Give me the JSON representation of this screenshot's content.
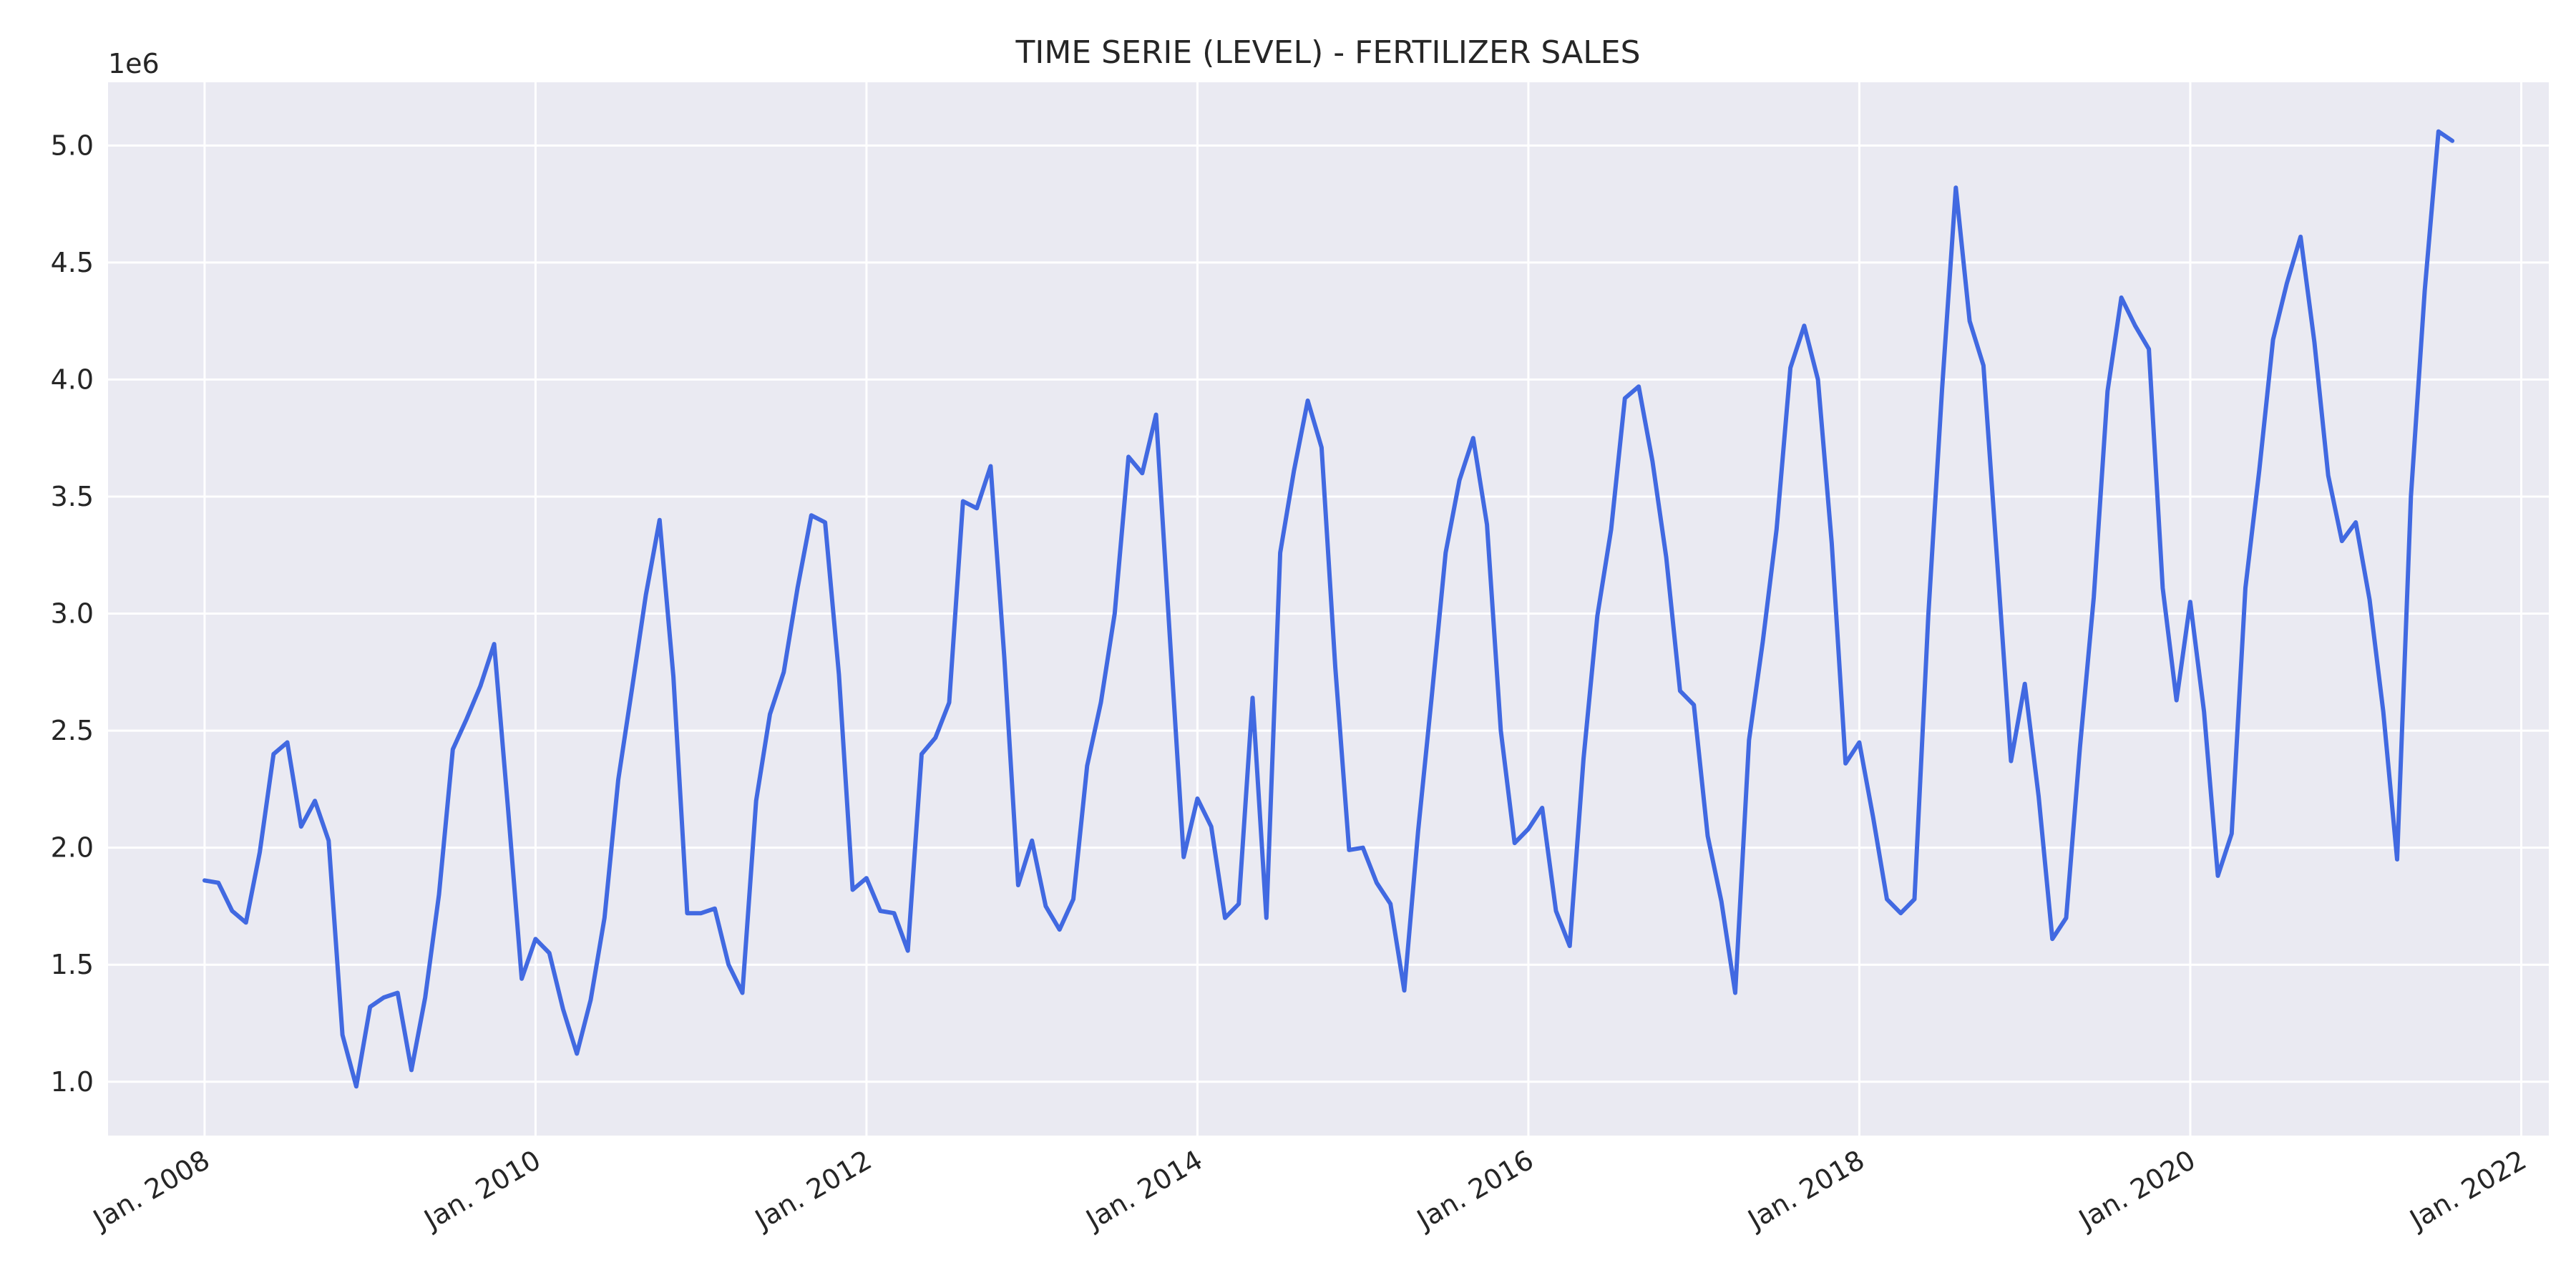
{
  "chart_data": {
    "type": "line",
    "title": "TIME SERIE (LEVEL) - FERTILIZER SALES",
    "xlabel": "",
    "ylabel": "",
    "y_offset_label": "1e6",
    "ylim": [
      0.77,
      5.27
    ],
    "y_ticks": [
      1.0,
      1.5,
      2.0,
      2.5,
      3.0,
      3.5,
      4.0,
      4.5,
      5.0
    ],
    "y_tick_labels": [
      "1.0",
      "1.5",
      "2.0",
      "2.5",
      "3.0",
      "3.5",
      "4.0",
      "4.5",
      "5.0"
    ],
    "x_ticks": [
      "2008-01",
      "2010-01",
      "2012-01",
      "2014-01",
      "2016-01",
      "2018-01",
      "2020-01",
      "2022-01"
    ],
    "x_tick_labels": [
      "Jan. 2008",
      "Jan. 2010",
      "Jan. 2012",
      "Jan. 2014",
      "Jan. 2016",
      "Jan. 2018",
      "Jan. 2020",
      "Jan. 2022"
    ],
    "xlim": [
      "2007-06",
      "2022-03"
    ],
    "grid": true,
    "colors": {
      "background": "#eaeaf2",
      "grid": "#ffffff",
      "line": "#4169e1"
    },
    "series": [
      {
        "x": [
          "2008-01",
          "2008-02",
          "2008-03",
          "2008-04",
          "2008-05",
          "2008-06",
          "2008-07",
          "2008-08",
          "2008-09",
          "2008-10",
          "2008-11",
          "2008-12",
          "2009-01",
          "2009-02",
          "2009-03",
          "2009-04",
          "2009-05",
          "2009-06",
          "2009-07",
          "2009-08",
          "2009-09",
          "2009-10",
          "2009-11",
          "2009-12",
          "2010-01",
          "2010-02",
          "2010-03",
          "2010-04",
          "2010-05",
          "2010-06",
          "2010-07",
          "2010-08",
          "2010-09",
          "2010-10",
          "2010-11",
          "2010-12",
          "2011-01",
          "2011-02",
          "2011-03",
          "2011-04",
          "2011-05",
          "2011-06",
          "2011-07",
          "2011-08",
          "2011-09",
          "2011-10",
          "2011-11",
          "2011-12",
          "2012-01",
          "2012-02",
          "2012-03",
          "2012-04",
          "2012-05",
          "2012-06",
          "2012-07",
          "2012-08",
          "2012-09",
          "2012-10",
          "2012-11",
          "2012-12",
          "2013-01",
          "2013-02",
          "2013-03",
          "2013-04",
          "2013-05",
          "2013-06",
          "2013-07",
          "2013-08",
          "2013-09",
          "2013-10",
          "2013-11",
          "2013-12",
          "2014-01",
          "2014-02",
          "2014-03",
          "2014-04",
          "2014-05",
          "2014-06",
          "2014-07",
          "2014-08",
          "2014-09",
          "2014-10",
          "2014-11",
          "2014-12",
          "2015-01",
          "2015-02",
          "2015-03",
          "2015-04",
          "2015-05",
          "2015-06",
          "2015-07",
          "2015-08",
          "2015-09",
          "2015-10",
          "2015-11",
          "2015-12",
          "2016-01",
          "2016-02",
          "2016-03",
          "2016-04",
          "2016-05",
          "2016-06",
          "2016-07",
          "2016-08",
          "2016-09",
          "2016-10",
          "2016-11",
          "2016-12",
          "2017-01",
          "2017-02",
          "2017-03",
          "2017-04",
          "2017-05",
          "2017-06",
          "2017-07",
          "2017-08",
          "2017-09",
          "2017-10",
          "2017-11",
          "2017-12",
          "2018-01",
          "2018-02",
          "2018-03",
          "2018-04",
          "2018-05",
          "2018-06",
          "2018-07",
          "2018-08",
          "2018-09",
          "2018-10",
          "2018-11",
          "2018-12",
          "2019-01",
          "2019-02",
          "2019-03",
          "2019-04",
          "2019-05",
          "2019-06",
          "2019-07",
          "2019-08",
          "2019-09",
          "2019-10",
          "2019-11",
          "2019-12",
          "2020-01",
          "2020-02",
          "2020-03",
          "2020-04",
          "2020-05",
          "2020-06",
          "2020-07",
          "2020-08",
          "2020-09",
          "2020-10",
          "2020-11",
          "2020-12",
          "2021-01",
          "2021-02",
          "2021-03",
          "2021-04",
          "2021-05",
          "2021-06",
          "2021-07",
          "2021-08"
        ],
        "values": [
          1.86,
          1.85,
          1.73,
          1.68,
          1.98,
          2.4,
          2.45,
          2.09,
          2.2,
          2.03,
          1.2,
          0.98,
          1.32,
          1.36,
          1.38,
          1.05,
          1.36,
          1.8,
          2.42,
          2.55,
          2.69,
          2.87,
          2.17,
          1.44,
          1.61,
          1.55,
          1.31,
          1.12,
          1.35,
          1.7,
          2.29,
          2.68,
          3.08,
          3.4,
          2.73,
          1.72,
          1.72,
          1.74,
          1.5,
          1.38,
          2.2,
          2.57,
          2.75,
          3.11,
          3.42,
          3.39,
          2.74,
          1.82,
          1.87,
          1.73,
          1.72,
          1.56,
          2.4,
          2.47,
          2.62,
          3.48,
          3.45,
          3.63,
          2.81,
          1.84,
          2.03,
          1.75,
          1.65,
          1.78,
          2.35,
          2.62,
          3.0,
          3.67,
          3.6,
          3.85,
          2.9,
          1.96,
          2.21,
          2.09,
          1.7,
          1.76,
          2.64,
          1.7,
          3.26,
          3.61,
          3.91,
          3.71,
          2.77,
          1.99,
          2.0,
          1.85,
          1.76,
          1.39,
          2.07,
          2.65,
          3.26,
          3.57,
          3.75,
          3.38,
          2.5,
          2.02,
          2.08,
          2.17,
          1.73,
          1.58,
          2.38,
          2.99,
          3.36,
          3.92,
          3.97,
          3.65,
          3.24,
          2.67,
          2.61,
          2.05,
          1.77,
          1.38,
          2.46,
          2.88,
          3.36,
          4.05,
          4.23,
          4.0,
          3.3,
          2.36,
          2.45,
          2.13,
          1.78,
          1.72,
          1.78,
          2.99,
          3.96,
          4.82,
          4.25,
          4.06,
          3.22,
          2.37,
          2.7,
          2.22,
          1.61,
          1.7,
          2.43,
          3.07,
          3.95,
          4.35,
          4.23,
          4.13,
          3.11,
          2.63,
          3.05,
          2.58,
          1.88,
          2.06,
          3.11,
          3.61,
          4.17,
          4.41,
          4.61,
          4.16,
          3.59,
          3.31,
          3.39,
          3.06,
          2.58,
          1.95,
          3.5,
          4.38,
          5.06,
          5.02
        ]
      }
    ]
  }
}
